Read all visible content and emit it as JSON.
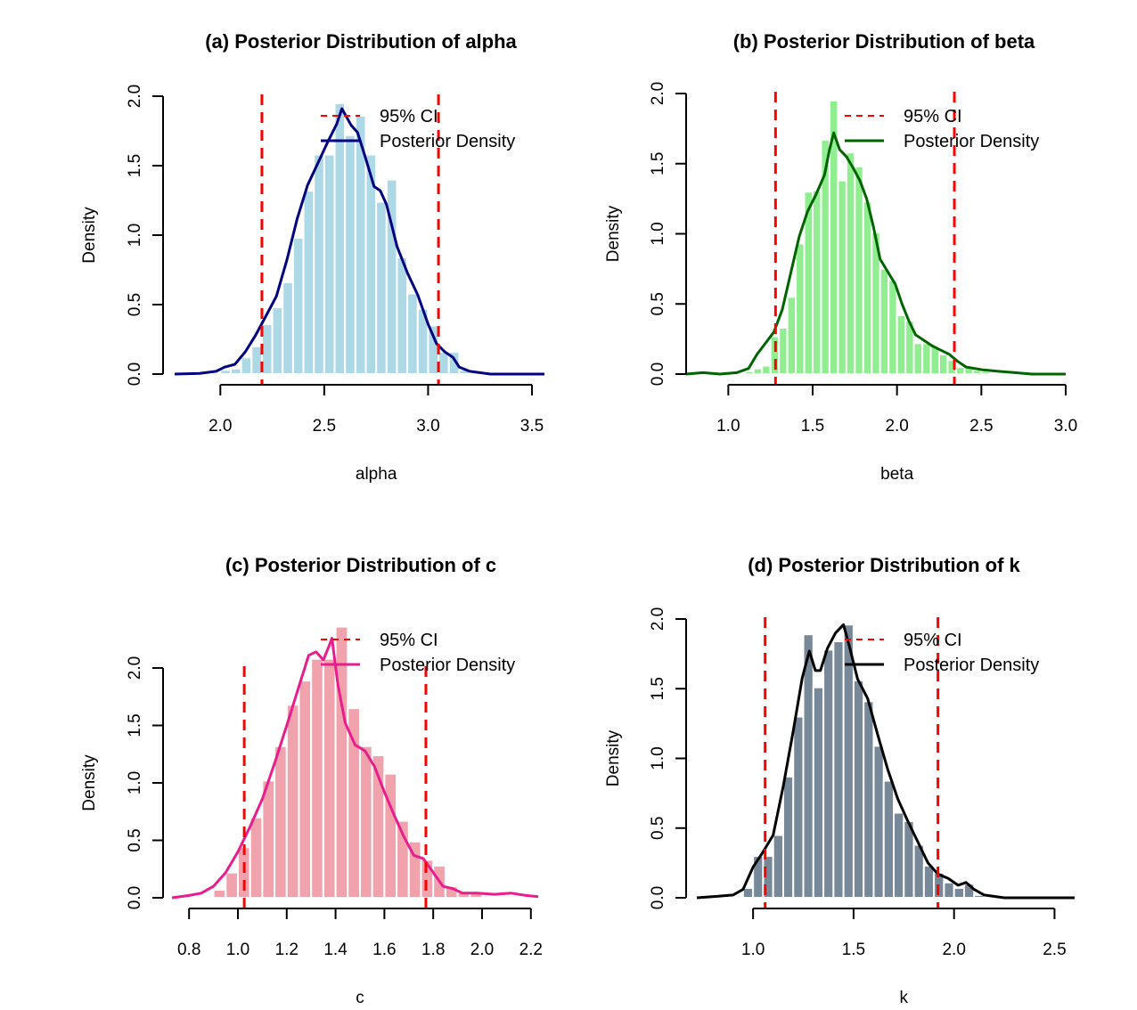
{
  "chart_data": [
    {
      "type": "histogram",
      "id": "a",
      "title": "(a) Posterior Distribution of alpha",
      "xlabel": "alpha",
      "ylabel": "Density",
      "xticks": [
        2.0,
        2.5,
        3.0,
        3.5
      ],
      "xtick_labels": [
        "2.0",
        "2.5",
        "3.0",
        "3.5"
      ],
      "yticks": [
        0.0,
        0.5,
        1.0,
        1.5,
        2.0
      ],
      "ytick_labels": [
        "0.0",
        "0.5",
        "1.0",
        "1.5",
        "2.0"
      ],
      "xlim": [
        1.78,
        3.56
      ],
      "ylim": [
        0,
        2.0
      ],
      "bin_width": 0.05,
      "bin_start": 2.0,
      "bar_color": "#add8e6",
      "line_color": "#000080",
      "bar_values": [
        0.03,
        0.04,
        0.12,
        0.2,
        0.36,
        0.48,
        0.66,
        0.98,
        1.32,
        1.58,
        1.58,
        1.95,
        1.72,
        1.86,
        1.58,
        1.24,
        1.4,
        0.84,
        0.58,
        0.47,
        0.35,
        0.16,
        0.16,
        0.03
      ],
      "density_curve": [
        [
          1.78,
          0.0
        ],
        [
          1.9,
          0.005
        ],
        [
          1.98,
          0.02
        ],
        [
          2.02,
          0.05
        ],
        [
          2.07,
          0.07
        ],
        [
          2.12,
          0.16
        ],
        [
          2.17,
          0.28
        ],
        [
          2.22,
          0.42
        ],
        [
          2.27,
          0.56
        ],
        [
          2.32,
          0.82
        ],
        [
          2.37,
          1.12
        ],
        [
          2.42,
          1.36
        ],
        [
          2.47,
          1.52
        ],
        [
          2.52,
          1.68
        ],
        [
          2.56,
          1.8
        ],
        [
          2.585,
          1.91
        ],
        [
          2.6,
          1.87
        ],
        [
          2.63,
          1.79
        ],
        [
          2.66,
          1.74
        ],
        [
          2.7,
          1.55
        ],
        [
          2.74,
          1.35
        ],
        [
          2.77,
          1.32
        ],
        [
          2.8,
          1.22
        ],
        [
          2.85,
          0.92
        ],
        [
          2.9,
          0.73
        ],
        [
          2.95,
          0.57
        ],
        [
          3.0,
          0.36
        ],
        [
          3.04,
          0.22
        ],
        [
          3.08,
          0.16
        ],
        [
          3.12,
          0.12
        ],
        [
          3.15,
          0.05
        ],
        [
          3.2,
          0.02
        ],
        [
          3.3,
          0.0
        ],
        [
          3.56,
          0.0
        ]
      ],
      "ci": [
        2.2,
        3.05
      ],
      "legend": [
        {
          "label": "95% CI",
          "style": "dashed",
          "color": "#ff0000"
        },
        {
          "label": "Posterior Density",
          "style": "solid",
          "color": "#000080"
        }
      ],
      "legend_position": "top-right"
    },
    {
      "type": "histogram",
      "id": "b",
      "title": "(b) Posterior Distribution of beta",
      "xlabel": "beta",
      "ylabel": "Density",
      "xticks": [
        1.0,
        1.5,
        2.0,
        2.5,
        3.0
      ],
      "xtick_labels": [
        "1.0",
        "1.5",
        "2.0",
        "2.5",
        "3.0"
      ],
      "yticks": [
        0.0,
        0.5,
        1.0,
        1.5,
        2.0
      ],
      "ytick_labels": [
        "0.0",
        "0.5",
        "1.0",
        "1.5",
        "2.0"
      ],
      "xlim": [
        0.75,
        3.0
      ],
      "ylim": [
        0,
        2.0
      ],
      "bin_width": 0.05,
      "bin_start": 1.1,
      "bar_color": "#90ee90",
      "line_color": "#006400",
      "bar_values": [
        0.02,
        0.04,
        0.06,
        0.27,
        0.33,
        0.55,
        0.93,
        1.3,
        1.31,
        1.67,
        1.95,
        1.38,
        1.58,
        1.48,
        1.23,
        1.01,
        0.75,
        0.67,
        0.42,
        0.38,
        0.22,
        0.22,
        0.2,
        0.14,
        0.1,
        0.05,
        0.05,
        0.03,
        0.02
      ],
      "density_curve": [
        [
          0.75,
          0.0
        ],
        [
          0.85,
          0.01
        ],
        [
          0.95,
          0.0
        ],
        [
          1.05,
          0.01
        ],
        [
          1.12,
          0.04
        ],
        [
          1.17,
          0.14
        ],
        [
          1.22,
          0.22
        ],
        [
          1.27,
          0.3
        ],
        [
          1.32,
          0.46
        ],
        [
          1.37,
          0.72
        ],
        [
          1.42,
          0.98
        ],
        [
          1.47,
          1.16
        ],
        [
          1.52,
          1.28
        ],
        [
          1.57,
          1.42
        ],
        [
          1.6,
          1.6
        ],
        [
          1.625,
          1.72
        ],
        [
          1.66,
          1.6
        ],
        [
          1.7,
          1.55
        ],
        [
          1.74,
          1.47
        ],
        [
          1.78,
          1.38
        ],
        [
          1.82,
          1.25
        ],
        [
          1.86,
          1.05
        ],
        [
          1.9,
          0.82
        ],
        [
          1.95,
          0.72
        ],
        [
          1.99,
          0.64
        ],
        [
          2.03,
          0.5
        ],
        [
          2.07,
          0.38
        ],
        [
          2.11,
          0.28
        ],
        [
          2.16,
          0.24
        ],
        [
          2.21,
          0.2
        ],
        [
          2.26,
          0.17
        ],
        [
          2.31,
          0.14
        ],
        [
          2.36,
          0.09
        ],
        [
          2.41,
          0.05
        ],
        [
          2.46,
          0.04
        ],
        [
          2.51,
          0.03
        ],
        [
          2.6,
          0.02
        ],
        [
          2.7,
          0.01
        ],
        [
          2.8,
          0.0
        ],
        [
          3.0,
          0.0
        ]
      ],
      "ci": [
        1.28,
        2.34
      ],
      "legend": [
        {
          "label": "95% CI",
          "style": "dashed",
          "color": "#ff0000"
        },
        {
          "label": "Posterior Density",
          "style": "solid",
          "color": "#006400"
        }
      ],
      "legend_position": "top-right"
    },
    {
      "type": "histogram",
      "id": "c",
      "title": "(c) Posterior Distribution of c",
      "xlabel": "c",
      "ylabel": "Density",
      "xticks": [
        0.8,
        1.0,
        1.2,
        1.4,
        1.6,
        1.8,
        2.0,
        2.2
      ],
      "xtick_labels": [
        "0.8",
        "1.0",
        "1.2",
        "1.4",
        "1.6",
        "1.8",
        "2.0",
        "2.2"
      ],
      "yticks": [
        0.0,
        0.5,
        1.0,
        1.5,
        2.0
      ],
      "ytick_labels": [
        "0.0",
        "0.5",
        "1.0",
        "1.5",
        "2.0"
      ],
      "xlim": [
        0.73,
        2.23
      ],
      "ylim": [
        0,
        2.0
      ],
      "bin_width": 0.05,
      "bin_start": 0.9,
      "bar_color": "#f0a3ad",
      "line_color": "#e91e8c",
      "bar_values": [
        0.07,
        0.22,
        0.44,
        0.7,
        1.02,
        1.32,
        1.68,
        1.89,
        2.08,
        2.08,
        2.36,
        1.65,
        1.32,
        1.24,
        1.08,
        0.67,
        0.49,
        0.33,
        0.28,
        0.1,
        0.05,
        0.05
      ],
      "density_curve": [
        [
          0.73,
          0.0
        ],
        [
          0.8,
          0.02
        ],
        [
          0.85,
          0.04
        ],
        [
          0.9,
          0.1
        ],
        [
          0.95,
          0.22
        ],
        [
          1.0,
          0.4
        ],
        [
          1.05,
          0.62
        ],
        [
          1.1,
          0.86
        ],
        [
          1.15,
          1.17
        ],
        [
          1.2,
          1.5
        ],
        [
          1.25,
          1.84
        ],
        [
          1.29,
          2.11
        ],
        [
          1.32,
          2.14
        ],
        [
          1.35,
          2.07
        ],
        [
          1.375,
          2.2
        ],
        [
          1.385,
          2.26
        ],
        [
          1.41,
          1.85
        ],
        [
          1.44,
          1.52
        ],
        [
          1.48,
          1.33
        ],
        [
          1.52,
          1.28
        ],
        [
          1.56,
          1.14
        ],
        [
          1.6,
          0.92
        ],
        [
          1.64,
          0.72
        ],
        [
          1.68,
          0.53
        ],
        [
          1.72,
          0.37
        ],
        [
          1.76,
          0.34
        ],
        [
          1.8,
          0.22
        ],
        [
          1.84,
          0.1
        ],
        [
          1.88,
          0.08
        ],
        [
          1.92,
          0.04
        ],
        [
          1.98,
          0.04
        ],
        [
          2.05,
          0.03
        ],
        [
          2.12,
          0.04
        ],
        [
          2.18,
          0.02
        ],
        [
          2.23,
          0.01
        ]
      ],
      "ci": [
        1.026,
        1.77
      ],
      "legend": [
        {
          "label": "95% CI",
          "style": "dashed",
          "color": "#ff0000"
        },
        {
          "label": "Posterior Density",
          "style": "solid",
          "color": "#e91e8c"
        }
      ],
      "legend_position": "top-right"
    },
    {
      "type": "histogram",
      "id": "d",
      "title": "(d) Posterior Distribution of k",
      "xlabel": "k",
      "ylabel": "Density",
      "xticks": [
        1.0,
        1.5,
        2.0,
        2.5
      ],
      "xtick_labels": [
        "1.0",
        "1.5",
        "2.0",
        "2.5"
      ],
      "yticks": [
        0.0,
        0.5,
        1.0,
        1.5,
        2.0
      ],
      "ytick_labels": [
        "0.0",
        "0.5",
        "1.0",
        "1.5",
        "2.0"
      ],
      "xlim": [
        0.72,
        2.6
      ],
      "ylim": [
        0,
        2.0
      ],
      "bin_width": 0.05,
      "bin_start": 0.95,
      "bar_color": "#778899",
      "line_color": "#000000",
      "bar_values": [
        0.07,
        0.3,
        0.3,
        0.45,
        0.87,
        1.3,
        1.89,
        1.51,
        1.78,
        1.84,
        1.96,
        1.56,
        1.41,
        1.09,
        0.84,
        0.61,
        0.55,
        0.38,
        0.23,
        0.18,
        0.11,
        0.07,
        0.1,
        0.02
      ],
      "density_curve": [
        [
          0.72,
          0.0
        ],
        [
          0.82,
          0.01
        ],
        [
          0.9,
          0.02
        ],
        [
          0.95,
          0.06
        ],
        [
          1.0,
          0.22
        ],
        [
          1.05,
          0.33
        ],
        [
          1.1,
          0.45
        ],
        [
          1.15,
          0.8
        ],
        [
          1.2,
          1.2
        ],
        [
          1.245,
          1.58
        ],
        [
          1.28,
          1.77
        ],
        [
          1.31,
          1.63
        ],
        [
          1.335,
          1.63
        ],
        [
          1.37,
          1.79
        ],
        [
          1.41,
          1.9
        ],
        [
          1.45,
          1.96
        ],
        [
          1.48,
          1.8
        ],
        [
          1.52,
          1.57
        ],
        [
          1.57,
          1.43
        ],
        [
          1.62,
          1.17
        ],
        [
          1.67,
          0.92
        ],
        [
          1.72,
          0.71
        ],
        [
          1.77,
          0.55
        ],
        [
          1.82,
          0.4
        ],
        [
          1.87,
          0.25
        ],
        [
          1.92,
          0.17
        ],
        [
          1.97,
          0.14
        ],
        [
          2.02,
          0.09
        ],
        [
          2.06,
          0.11
        ],
        [
          2.1,
          0.06
        ],
        [
          2.15,
          0.02
        ],
        [
          2.25,
          0.0
        ],
        [
          2.35,
          0.0
        ],
        [
          2.6,
          0.0
        ]
      ],
      "ci": [
        1.06,
        1.92
      ],
      "legend": [
        {
          "label": "95% CI",
          "style": "dashed",
          "color": "#ff0000"
        },
        {
          "label": "Posterior Density",
          "style": "solid",
          "color": "#000000"
        }
      ],
      "legend_position": "top-right"
    }
  ]
}
